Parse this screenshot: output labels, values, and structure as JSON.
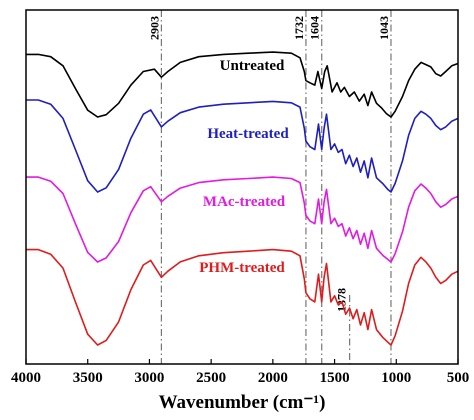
{
  "chart_data": {
    "type": "line",
    "xlabel": "Wavenumber (cm⁻¹)",
    "ylabel": "",
    "xlim": [
      4000,
      500
    ],
    "x_reversed": true,
    "x_ticks": [
      4000,
      3500,
      3000,
      2500,
      2000,
      1500,
      1000,
      500
    ],
    "y_axis_ticks": false,
    "reference_lines": [
      {
        "x": 2903,
        "label": "2903",
        "color": "#777777",
        "style": "dash-dot"
      },
      {
        "x": 1732,
        "label": "1732",
        "color": "#777777",
        "style": "dash-dot"
      },
      {
        "x": 1604,
        "label": "1604",
        "color": "#777777",
        "style": "dash-dot"
      },
      {
        "x": 1378,
        "label": "1378",
        "color": "#777777",
        "style": "dash-dot"
      },
      {
        "x": 1043,
        "label": "1043",
        "color": "#777777",
        "style": "dash-dot"
      }
    ],
    "series": [
      {
        "name": "Untreated",
        "color": "#000000",
        "points": [
          [
            4000,
            0.55
          ],
          [
            3900,
            0.55
          ],
          [
            3800,
            0.53
          ],
          [
            3700,
            0.45
          ],
          [
            3600,
            0.25
          ],
          [
            3500,
            0.06
          ],
          [
            3420,
            0.0
          ],
          [
            3350,
            0.02
          ],
          [
            3250,
            0.12
          ],
          [
            3150,
            0.28
          ],
          [
            3050,
            0.4
          ],
          [
            2960,
            0.42
          ],
          [
            2903,
            0.35
          ],
          [
            2850,
            0.4
          ],
          [
            2750,
            0.48
          ],
          [
            2600,
            0.53
          ],
          [
            2400,
            0.55
          ],
          [
            2200,
            0.56
          ],
          [
            2000,
            0.57
          ],
          [
            1850,
            0.56
          ],
          [
            1780,
            0.52
          ],
          [
            1745,
            0.4
          ],
          [
            1732,
            0.32
          ],
          [
            1700,
            0.3
          ],
          [
            1660,
            0.28
          ],
          [
            1635,
            0.4
          ],
          [
            1604,
            0.25
          ],
          [
            1580,
            0.4
          ],
          [
            1560,
            0.45
          ],
          [
            1520,
            0.22
          ],
          [
            1480,
            0.3
          ],
          [
            1450,
            0.22
          ],
          [
            1420,
            0.26
          ],
          [
            1380,
            0.18
          ],
          [
            1340,
            0.22
          ],
          [
            1300,
            0.14
          ],
          [
            1260,
            0.2
          ],
          [
            1230,
            0.1
          ],
          [
            1200,
            0.22
          ],
          [
            1160,
            0.12
          ],
          [
            1120,
            0.08
          ],
          [
            1080,
            0.03
          ],
          [
            1043,
            0.0
          ],
          [
            1010,
            0.05
          ],
          [
            950,
            0.18
          ],
          [
            900,
            0.32
          ],
          [
            850,
            0.42
          ],
          [
            800,
            0.48
          ],
          [
            760,
            0.46
          ],
          [
            720,
            0.44
          ],
          [
            680,
            0.38
          ],
          [
            640,
            0.36
          ],
          [
            600,
            0.4
          ],
          [
            550,
            0.45
          ],
          [
            500,
            0.47
          ]
        ]
      },
      {
        "name": "Heat-treated",
        "color": "#1f1fbf",
        "points": [
          [
            4000,
            0.65
          ],
          [
            3900,
            0.65
          ],
          [
            3800,
            0.62
          ],
          [
            3700,
            0.52
          ],
          [
            3600,
            0.3
          ],
          [
            3500,
            0.08
          ],
          [
            3420,
            0.0
          ],
          [
            3350,
            0.03
          ],
          [
            3250,
            0.16
          ],
          [
            3150,
            0.38
          ],
          [
            3050,
            0.55
          ],
          [
            2990,
            0.58
          ],
          [
            2903,
            0.46
          ],
          [
            2850,
            0.5
          ],
          [
            2750,
            0.56
          ],
          [
            2600,
            0.6
          ],
          [
            2400,
            0.62
          ],
          [
            2200,
            0.63
          ],
          [
            2000,
            0.64
          ],
          [
            1850,
            0.63
          ],
          [
            1780,
            0.6
          ],
          [
            1745,
            0.45
          ],
          [
            1732,
            0.36
          ],
          [
            1700,
            0.32
          ],
          [
            1660,
            0.3
          ],
          [
            1630,
            0.48
          ],
          [
            1604,
            0.3
          ],
          [
            1585,
            0.45
          ],
          [
            1565,
            0.55
          ],
          [
            1530,
            0.3
          ],
          [
            1500,
            0.34
          ],
          [
            1470,
            0.28
          ],
          [
            1440,
            0.3
          ],
          [
            1410,
            0.2
          ],
          [
            1380,
            0.26
          ],
          [
            1350,
            0.18
          ],
          [
            1320,
            0.24
          ],
          [
            1290,
            0.14
          ],
          [
            1260,
            0.22
          ],
          [
            1230,
            0.1
          ],
          [
            1200,
            0.24
          ],
          [
            1160,
            0.1
          ],
          [
            1110,
            0.06
          ],
          [
            1070,
            0.02
          ],
          [
            1043,
            0.0
          ],
          [
            1010,
            0.06
          ],
          [
            950,
            0.22
          ],
          [
            900,
            0.4
          ],
          [
            850,
            0.52
          ],
          [
            800,
            0.57
          ],
          [
            760,
            0.55
          ],
          [
            720,
            0.52
          ],
          [
            680,
            0.47
          ],
          [
            640,
            0.44
          ],
          [
            600,
            0.46
          ],
          [
            550,
            0.5
          ],
          [
            500,
            0.52
          ]
        ]
      },
      {
        "name": "MAc-treated",
        "color": "#e21ae2",
        "points": [
          [
            4000,
            0.62
          ],
          [
            3900,
            0.62
          ],
          [
            3800,
            0.59
          ],
          [
            3700,
            0.5
          ],
          [
            3600,
            0.28
          ],
          [
            3500,
            0.07
          ],
          [
            3420,
            0.0
          ],
          [
            3350,
            0.03
          ],
          [
            3250,
            0.15
          ],
          [
            3150,
            0.36
          ],
          [
            3050,
            0.52
          ],
          [
            2990,
            0.55
          ],
          [
            2903,
            0.44
          ],
          [
            2850,
            0.48
          ],
          [
            2750,
            0.54
          ],
          [
            2600,
            0.58
          ],
          [
            2400,
            0.6
          ],
          [
            2200,
            0.61
          ],
          [
            2000,
            0.62
          ],
          [
            1850,
            0.61
          ],
          [
            1780,
            0.58
          ],
          [
            1745,
            0.43
          ],
          [
            1732,
            0.34
          ],
          [
            1700,
            0.3
          ],
          [
            1660,
            0.28
          ],
          [
            1630,
            0.46
          ],
          [
            1604,
            0.28
          ],
          [
            1585,
            0.44
          ],
          [
            1565,
            0.53
          ],
          [
            1530,
            0.28
          ],
          [
            1500,
            0.32
          ],
          [
            1470,
            0.26
          ],
          [
            1440,
            0.28
          ],
          [
            1410,
            0.19
          ],
          [
            1380,
            0.25
          ],
          [
            1350,
            0.17
          ],
          [
            1320,
            0.23
          ],
          [
            1290,
            0.13
          ],
          [
            1260,
            0.21
          ],
          [
            1230,
            0.1
          ],
          [
            1200,
            0.23
          ],
          [
            1160,
            0.1
          ],
          [
            1110,
            0.05
          ],
          [
            1070,
            0.02
          ],
          [
            1043,
            0.0
          ],
          [
            1010,
            0.06
          ],
          [
            950,
            0.22
          ],
          [
            900,
            0.4
          ],
          [
            850,
            0.52
          ],
          [
            800,
            0.57
          ],
          [
            760,
            0.54
          ],
          [
            720,
            0.5
          ],
          [
            680,
            0.44
          ],
          [
            640,
            0.4
          ],
          [
            600,
            0.42
          ],
          [
            550,
            0.46
          ],
          [
            500,
            0.48
          ]
        ]
      },
      {
        "name": "PHM-treated",
        "color": "#e01b1b",
        "points": [
          [
            4000,
            0.62
          ],
          [
            3900,
            0.62
          ],
          [
            3800,
            0.59
          ],
          [
            3700,
            0.5
          ],
          [
            3600,
            0.28
          ],
          [
            3500,
            0.07
          ],
          [
            3420,
            0.0
          ],
          [
            3350,
            0.03
          ],
          [
            3250,
            0.15
          ],
          [
            3150,
            0.36
          ],
          [
            3050,
            0.52
          ],
          [
            2990,
            0.55
          ],
          [
            2903,
            0.44
          ],
          [
            2850,
            0.48
          ],
          [
            2750,
            0.54
          ],
          [
            2600,
            0.58
          ],
          [
            2400,
            0.6
          ],
          [
            2200,
            0.61
          ],
          [
            2000,
            0.62
          ],
          [
            1850,
            0.61
          ],
          [
            1780,
            0.58
          ],
          [
            1745,
            0.43
          ],
          [
            1732,
            0.34
          ],
          [
            1700,
            0.3
          ],
          [
            1660,
            0.28
          ],
          [
            1630,
            0.46
          ],
          [
            1604,
            0.28
          ],
          [
            1585,
            0.44
          ],
          [
            1565,
            0.53
          ],
          [
            1530,
            0.28
          ],
          [
            1500,
            0.32
          ],
          [
            1470,
            0.26
          ],
          [
            1440,
            0.28
          ],
          [
            1410,
            0.2
          ],
          [
            1378,
            0.24
          ],
          [
            1350,
            0.17
          ],
          [
            1320,
            0.23
          ],
          [
            1290,
            0.13
          ],
          [
            1260,
            0.21
          ],
          [
            1230,
            0.1
          ],
          [
            1200,
            0.23
          ],
          [
            1160,
            0.1
          ],
          [
            1110,
            0.05
          ],
          [
            1070,
            0.02
          ],
          [
            1043,
            0.0
          ],
          [
            1010,
            0.06
          ],
          [
            950,
            0.22
          ],
          [
            900,
            0.4
          ],
          [
            850,
            0.52
          ],
          [
            800,
            0.57
          ],
          [
            760,
            0.54
          ],
          [
            720,
            0.5
          ],
          [
            680,
            0.44
          ],
          [
            640,
            0.4
          ],
          [
            600,
            0.42
          ],
          [
            550,
            0.46
          ],
          [
            500,
            0.48
          ]
        ]
      }
    ]
  }
}
